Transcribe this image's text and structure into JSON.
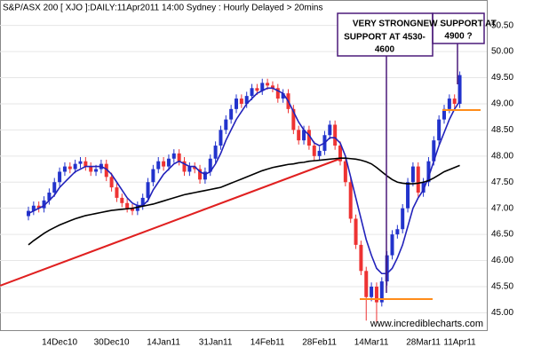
{
  "chart_data": {
    "type": "candlestick",
    "title": "S&P/ASX 200 [ XJO ]:DAILY:11Apr2011 14:00 Sydney : Hourly Delayed > 20mins",
    "watermark": "www.incrediblecharts.com",
    "annotations": [
      {
        "lines": [
          "VERY STRONG",
          "SUPPORT AT 4530-",
          "4600"
        ]
      },
      {
        "lines": [
          "NEW SUPPORT AT",
          "4900 ?"
        ]
      }
    ],
    "categories": [
      null,
      null,
      null,
      null,
      null,
      null,
      "14Dec10",
      null,
      null,
      null,
      null,
      null,
      null,
      null,
      null,
      null,
      "30Dec10",
      null,
      null,
      null,
      null,
      null,
      null,
      null,
      null,
      null,
      "14Jan11",
      null,
      null,
      null,
      null,
      null,
      null,
      null,
      null,
      null,
      "31Jan11",
      null,
      null,
      null,
      null,
      null,
      null,
      null,
      null,
      null,
      "14Feb11",
      null,
      null,
      null,
      null,
      null,
      null,
      null,
      null,
      null,
      "28Feb11",
      null,
      null,
      null,
      null,
      null,
      null,
      null,
      null,
      null,
      "14Mar11",
      null,
      null,
      null,
      null,
      null,
      null,
      null,
      null,
      null,
      "28Mar11",
      null,
      null,
      null,
      null,
      null,
      null,
      "11Apr11"
    ],
    "open": [
      46.85,
      46.95,
      47.05,
      47.0,
      47.15,
      47.3,
      47.5,
      47.7,
      47.8,
      47.75,
      47.85,
      47.9,
      47.8,
      47.7,
      47.75,
      47.85,
      47.6,
      47.4,
      47.2,
      47.1,
      47.0,
      46.95,
      47.05,
      47.2,
      47.5,
      47.75,
      47.9,
      47.8,
      47.95,
      48.05,
      47.9,
      47.7,
      47.8,
      47.75,
      47.55,
      47.7,
      47.95,
      48.2,
      48.5,
      48.7,
      48.9,
      49.1,
      49.0,
      49.15,
      49.3,
      49.25,
      49.4,
      49.35,
      49.3,
      49.1,
      49.2,
      48.9,
      48.5,
      48.3,
      48.5,
      48.2,
      48.0,
      48.1,
      48.4,
      48.6,
      48.2,
      47.9,
      47.5,
      46.8,
      46.3,
      45.8,
      45.3,
      45.5,
      45.2,
      45.6,
      46.1,
      46.5,
      46.6,
      47.0,
      47.5,
      47.8,
      47.3,
      47.5,
      47.9,
      48.3,
      48.7,
      48.9,
      49.1,
      49.0
    ],
    "high": [
      47.03,
      47.13,
      47.13,
      47.23,
      47.38,
      47.58,
      47.78,
      47.88,
      47.88,
      47.93,
      47.98,
      47.98,
      47.88,
      47.83,
      47.93,
      47.93,
      47.68,
      47.48,
      47.28,
      47.18,
      47.08,
      47.13,
      47.28,
      47.58,
      47.83,
      47.98,
      47.98,
      48.03,
      48.13,
      48.13,
      47.98,
      47.88,
      47.88,
      47.83,
      47.78,
      48.03,
      48.28,
      48.58,
      48.78,
      48.98,
      49.18,
      49.18,
      49.23,
      49.38,
      49.38,
      49.48,
      49.48,
      49.43,
      49.38,
      49.28,
      49.28,
      48.98,
      48.58,
      48.58,
      48.58,
      48.28,
      48.18,
      48.48,
      48.68,
      48.68,
      48.28,
      47.98,
      47.58,
      46.88,
      46.38,
      45.88,
      45.58,
      45.58,
      45.68,
      46.18,
      46.58,
      46.68,
      47.08,
      47.58,
      47.88,
      47.88,
      47.58,
      47.98,
      48.38,
      48.78,
      48.98,
      49.18,
      49.18,
      49.62
    ],
    "low": [
      46.77,
      46.87,
      46.92,
      46.92,
      47.07,
      47.22,
      47.42,
      47.62,
      47.67,
      47.67,
      47.77,
      47.72,
      47.62,
      47.62,
      47.67,
      47.52,
      47.32,
      47.12,
      47.02,
      46.92,
      46.87,
      46.87,
      46.97,
      47.12,
      47.42,
      47.67,
      47.72,
      47.72,
      47.87,
      47.82,
      47.62,
      47.62,
      47.67,
      47.47,
      47.47,
      47.62,
      47.87,
      48.12,
      48.42,
      48.62,
      48.82,
      48.92,
      48.92,
      49.07,
      49.17,
      49.17,
      49.27,
      49.22,
      49.02,
      49.02,
      48.82,
      48.42,
      48.22,
      48.22,
      48.12,
      47.92,
      47.92,
      48.02,
      48.32,
      48.12,
      47.82,
      47.42,
      46.72,
      46.22,
      45.72,
      44.85,
      45.22,
      44.8,
      45.12,
      45.52,
      46.02,
      46.42,
      46.52,
      46.92,
      47.42,
      47.22,
      47.22,
      47.42,
      47.82,
      48.22,
      48.62,
      48.82,
      48.92,
      48.92
    ],
    "close": [
      46.95,
      47.05,
      47.0,
      47.15,
      47.3,
      47.5,
      47.7,
      47.8,
      47.75,
      47.85,
      47.9,
      47.8,
      47.7,
      47.75,
      47.85,
      47.6,
      47.4,
      47.2,
      47.1,
      47.0,
      46.95,
      47.05,
      47.2,
      47.5,
      47.75,
      47.9,
      47.8,
      47.95,
      48.05,
      47.9,
      47.7,
      47.8,
      47.75,
      47.55,
      47.7,
      47.95,
      48.2,
      48.5,
      48.7,
      48.9,
      49.1,
      49.0,
      49.15,
      49.3,
      49.25,
      49.4,
      49.35,
      49.3,
      49.1,
      49.2,
      48.9,
      48.5,
      48.3,
      48.5,
      48.2,
      48.0,
      48.1,
      48.4,
      48.6,
      48.2,
      47.9,
      47.5,
      46.8,
      46.3,
      45.8,
      45.3,
      45.5,
      45.2,
      45.6,
      46.1,
      46.5,
      46.6,
      47.0,
      47.5,
      47.8,
      47.3,
      47.5,
      47.9,
      48.3,
      48.7,
      48.9,
      49.1,
      49.0,
      49.55
    ],
    "up_color": "#2233cc",
    "down_color": "#ee3333",
    "ma_series": [
      {
        "color": "#2222bb",
        "values": [
          46.9,
          46.95,
          47.0,
          47.05,
          47.15,
          47.25,
          47.4,
          47.5,
          47.6,
          47.7,
          47.75,
          47.8,
          47.8,
          47.8,
          47.8,
          47.75,
          47.65,
          47.5,
          47.35,
          47.2,
          47.1,
          47.05,
          47.05,
          47.15,
          47.35,
          47.5,
          47.65,
          47.75,
          47.85,
          47.9,
          47.85,
          47.8,
          47.8,
          47.7,
          47.65,
          47.7,
          47.85,
          48.05,
          48.3,
          48.5,
          48.7,
          48.85,
          49.0,
          49.1,
          49.2,
          49.25,
          49.3,
          49.3,
          49.25,
          49.2,
          49.05,
          48.85,
          48.65,
          48.5,
          48.4,
          48.25,
          48.2,
          48.25,
          48.35,
          48.35,
          48.25,
          48.0,
          47.6,
          47.2,
          46.8,
          46.4,
          46.1,
          45.85,
          45.75,
          45.75,
          45.85,
          46.05,
          46.3,
          46.65,
          47.0,
          47.2,
          47.35,
          47.6,
          47.9,
          48.2,
          48.45,
          48.7,
          48.9,
          49.05
        ]
      },
      {
        "color": "#000000",
        "values": [
          46.3,
          46.38,
          46.45,
          46.52,
          46.58,
          46.63,
          46.68,
          46.72,
          46.76,
          46.8,
          46.83,
          46.86,
          46.88,
          46.9,
          46.92,
          46.94,
          46.96,
          46.97,
          46.98,
          46.99,
          47.0,
          47.02,
          47.04,
          47.06,
          47.08,
          47.11,
          47.14,
          47.17,
          47.2,
          47.23,
          47.26,
          47.28,
          47.3,
          47.32,
          47.34,
          47.36,
          47.38,
          47.4,
          47.44,
          47.48,
          47.52,
          47.56,
          47.6,
          47.64,
          47.68,
          47.72,
          47.75,
          47.78,
          47.8,
          47.82,
          47.84,
          47.85,
          47.87,
          47.88,
          47.9,
          47.91,
          47.92,
          47.93,
          47.94,
          47.95,
          47.96,
          47.96,
          47.95,
          47.94,
          47.92,
          47.89,
          47.85,
          47.78,
          47.7,
          47.62,
          47.55,
          47.5,
          47.48,
          47.47,
          47.47,
          47.48,
          47.5,
          47.53,
          47.58,
          47.64,
          47.7,
          47.74,
          47.78,
          47.82
        ]
      }
    ],
    "ylim": [
      44.65,
      50.97
    ],
    "yticks": [
      {
        "value": 45,
        "label": "45.00"
      },
      {
        "value": 45.5,
        "label": "45.50"
      },
      {
        "value": 46,
        "label": "46.00"
      },
      {
        "value": 46.5,
        "label": "46.50"
      },
      {
        "value": 47,
        "label": "47.00"
      },
      {
        "value": 47.5,
        "label": "47.50"
      },
      {
        "value": 48,
        "label": "48.00"
      },
      {
        "value": 48.5,
        "label": "48.50"
      },
      {
        "value": 49,
        "label": "49.00"
      },
      {
        "value": 49.5,
        "label": "49.50"
      },
      {
        "value": 50,
        "label": "50.00"
      },
      {
        "value": 50.5,
        "label": "50.50"
      }
    ],
    "grid": true
  }
}
